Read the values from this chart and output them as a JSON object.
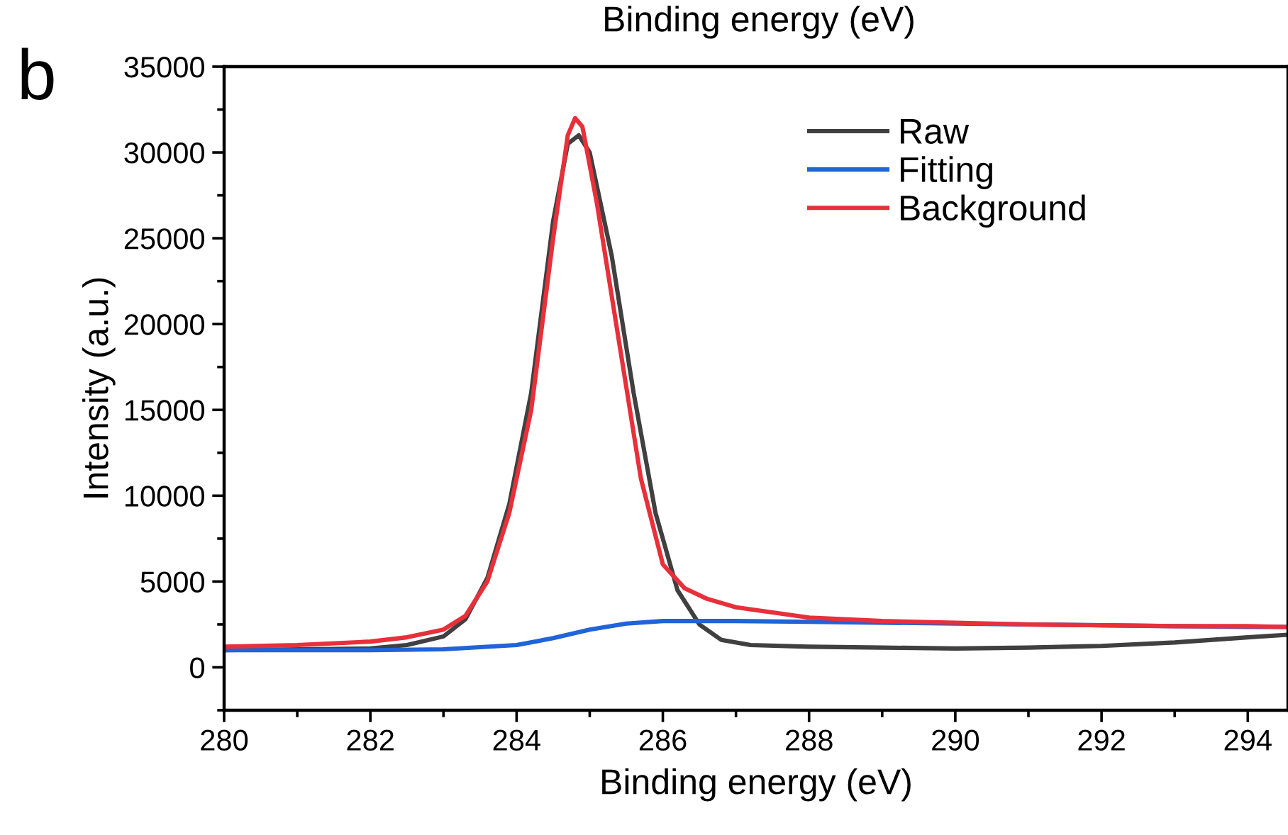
{
  "chart_data": {
    "type": "line",
    "xlabel": "Binding energy (eV)",
    "ylabel": "Intensity (a.u.)",
    "annotations": [
      "b",
      "Binding energy (eV)"
    ],
    "xlim": [
      280,
      294.55
    ],
    "xticks": [
      280,
      282,
      284,
      286,
      288,
      290,
      292,
      294
    ],
    "ylim": [
      -2500,
      35000
    ],
    "yticks": [
      0,
      5000,
      10000,
      15000,
      20000,
      25000,
      30000,
      35000
    ],
    "grid": false,
    "legend": "top right",
    "marker": "none",
    "line_style": "solid",
    "series": [
      {
        "name": "Raw",
        "color": "#404040",
        "x": [
          280,
          282,
          282.5,
          283,
          283.3,
          283.6,
          283.9,
          284.2,
          284.5,
          284.7,
          284.85,
          285,
          285.3,
          285.6,
          285.9,
          286.2,
          286.5,
          286.8,
          287.2,
          288,
          289,
          290,
          291,
          292,
          293,
          294,
          294.55
        ],
        "values": [
          1000,
          1100,
          1300,
          1800,
          2800,
          5200,
          9500,
          16000,
          26000,
          30500,
          31000,
          30000,
          24000,
          16000,
          9000,
          4500,
          2500,
          1600,
          1300,
          1200,
          1150,
          1100,
          1150,
          1250,
          1450,
          1750,
          1900
        ]
      },
      {
        "name": "Fitting",
        "color": "#1f64d8",
        "x": [
          280,
          282,
          283,
          284,
          284.5,
          285,
          285.5,
          286,
          287,
          288,
          290,
          292,
          294,
          294.55
        ],
        "values": [
          1000,
          1000,
          1050,
          1300,
          1700,
          2200,
          2550,
          2700,
          2700,
          2650,
          2550,
          2450,
          2350,
          2350
        ]
      },
      {
        "name": "Background",
        "color": "#e8303a",
        "x": [
          280,
          281,
          282,
          282.5,
          283,
          283.3,
          283.6,
          283.9,
          284.2,
          284.5,
          284.7,
          284.8,
          284.9,
          285.1,
          285.4,
          285.7,
          286,
          286.3,
          286.6,
          287,
          288,
          289,
          290,
          291,
          292,
          293,
          294,
          294.55
        ],
        "values": [
          1200,
          1300,
          1500,
          1750,
          2200,
          3000,
          5000,
          9000,
          15000,
          25000,
          31000,
          32000,
          31500,
          27000,
          19000,
          11000,
          6000,
          4600,
          4000,
          3500,
          2900,
          2700,
          2600,
          2500,
          2450,
          2400,
          2400,
          2350
        ]
      }
    ]
  }
}
